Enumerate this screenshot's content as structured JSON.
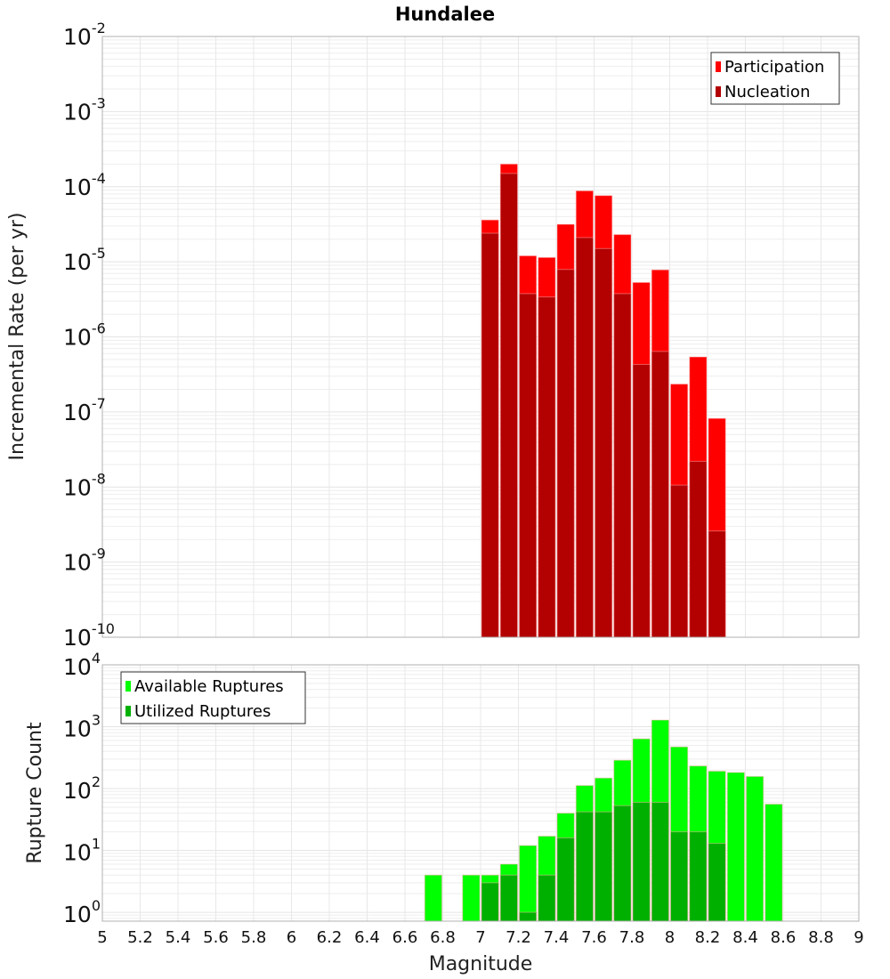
{
  "title": "Hundalee",
  "chart_data": [
    {
      "type": "bar",
      "scale": "log",
      "title": "Hundalee",
      "xlabel": "Magnitude",
      "ylabel": "Incremental Rate (per yr)",
      "xlim": [
        5,
        9
      ],
      "ylim": [
        1e-10,
        0.01
      ],
      "bin_width": 0.1,
      "grid": true,
      "legend_position": "top-right",
      "yticks": [
        {
          "base": "10",
          "exp": "-10",
          "value": 1e-10
        },
        {
          "base": "10",
          "exp": "-9",
          "value": 1e-09
        },
        {
          "base": "10",
          "exp": "-8",
          "value": 1e-08
        },
        {
          "base": "10",
          "exp": "-7",
          "value": 1e-07
        },
        {
          "base": "10",
          "exp": "-6",
          "value": 1e-06
        },
        {
          "base": "10",
          "exp": "-5",
          "value": 1e-05
        },
        {
          "base": "10",
          "exp": "-4",
          "value": 0.0001
        },
        {
          "base": "10",
          "exp": "-3",
          "value": 0.001
        },
        {
          "base": "10",
          "exp": "-2",
          "value": 0.01
        }
      ],
      "x": [
        7.05,
        7.15,
        7.25,
        7.35,
        7.45,
        7.55,
        7.65,
        7.75,
        7.85,
        7.95,
        8.05,
        8.15,
        8.25
      ],
      "series": [
        {
          "name": "Participation",
          "color": "#ff0000",
          "values": [
            3.6e-05,
            0.0002,
            1.2e-05,
            1.14e-05,
            3.15e-05,
            8.8e-05,
            7.6e-05,
            2.3e-05,
            5.3e-06,
            7.8e-06,
            2.35e-07,
            5.4e-07,
            8.2e-08
          ]
        },
        {
          "name": "Nucleation",
          "color": "#b30000",
          "values": [
            2.4e-05,
            0.00015,
            3.76e-06,
            3.4e-06,
            7.9e-06,
            2.1e-05,
            1.5e-05,
            3.76e-06,
            4.3e-07,
            6.4e-07,
            1.06e-08,
            2.2e-08,
            2.6e-09
          ]
        }
      ]
    },
    {
      "type": "bar",
      "scale": "log",
      "xlabel": "Magnitude",
      "ylabel": "Rupture Count",
      "xlim": [
        5,
        9
      ],
      "ylim": [
        0.72,
        10000
      ],
      "bin_width": 0.1,
      "grid": true,
      "legend_position": "top-left",
      "xticks": [
        "5",
        "5.2",
        "5.4",
        "5.6",
        "5.8",
        "6",
        "6.2",
        "6.4",
        "6.6",
        "6.8",
        "7",
        "7.2",
        "7.4",
        "7.6",
        "7.8",
        "8",
        "8.2",
        "8.4",
        "8.6",
        "8.8",
        "9"
      ],
      "yticks": [
        {
          "base": "10",
          "exp": "0",
          "value": 1
        },
        {
          "base": "10",
          "exp": "1",
          "value": 10
        },
        {
          "base": "10",
          "exp": "2",
          "value": 100
        },
        {
          "base": "10",
          "exp": "3",
          "value": 1000
        },
        {
          "base": "10",
          "exp": "4",
          "value": 10000
        }
      ],
      "x": [
        6.75,
        6.95,
        7.05,
        7.15,
        7.25,
        7.35,
        7.45,
        7.55,
        7.65,
        7.75,
        7.85,
        7.95,
        8.05,
        8.15,
        8.25,
        8.35,
        8.45,
        8.55
      ],
      "series": [
        {
          "name": "Available Ruptures",
          "color": "#00ff00",
          "values": [
            4,
            4,
            4,
            6,
            12,
            17,
            40,
            112,
            148,
            287,
            637,
            1280,
            472,
            232,
            191,
            182,
            157,
            56
          ]
        },
        {
          "name": "Utilized Ruptures",
          "color": "#00b000",
          "values": [
            0,
            0,
            3,
            4,
            1,
            4,
            16,
            42,
            42,
            53,
            60,
            60,
            20,
            20,
            13,
            0,
            0,
            0
          ]
        }
      ]
    }
  ]
}
